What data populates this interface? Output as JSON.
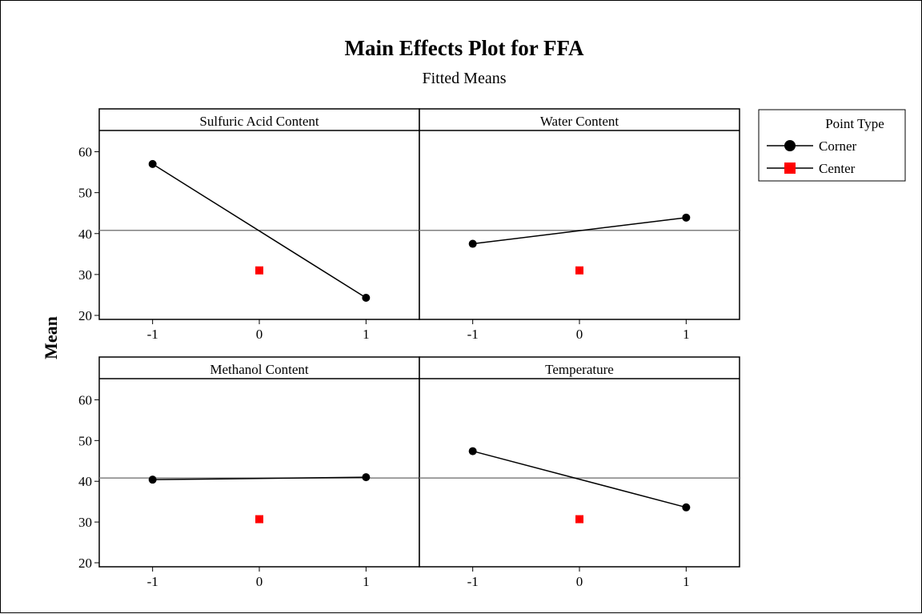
{
  "chart_data": {
    "type": "line",
    "title": "Main Effects Plot for FFA",
    "subtitle": "Fitted Means",
    "ylabel": "Mean",
    "ylim": [
      20,
      65
    ],
    "yticks": [
      20,
      30,
      40,
      50,
      60
    ],
    "xticks": [
      -1,
      0,
      1
    ],
    "xlim": [
      -1.5,
      1.5
    ],
    "overall_mean": 40.8,
    "legend": {
      "title": "Point Type",
      "entries": [
        {
          "name": "Corner",
          "color": "#000000",
          "marker": "circle"
        },
        {
          "name": "Center",
          "color": "#ff0000",
          "marker": "square"
        }
      ]
    },
    "panels": [
      {
        "title": "Sulfuric Acid Content",
        "corner": {
          "x": [
            -1,
            1
          ],
          "y": [
            57.0,
            24.3
          ]
        },
        "center": {
          "x": [
            0
          ],
          "y": [
            31.0
          ]
        }
      },
      {
        "title": "Water Content",
        "corner": {
          "x": [
            -1,
            1
          ],
          "y": [
            37.5,
            43.9
          ]
        },
        "center": {
          "x": [
            0
          ],
          "y": [
            31.0
          ]
        }
      },
      {
        "title": "Methanol Content",
        "corner": {
          "x": [
            -1,
            1
          ],
          "y": [
            40.4,
            41.0
          ]
        },
        "center": {
          "x": [
            0
          ],
          "y": [
            30.7
          ]
        }
      },
      {
        "title": "Temperature",
        "corner": {
          "x": [
            -1,
            1
          ],
          "y": [
            47.4,
            33.6
          ]
        },
        "center": {
          "x": [
            0
          ],
          "y": [
            30.7
          ]
        }
      }
    ]
  }
}
